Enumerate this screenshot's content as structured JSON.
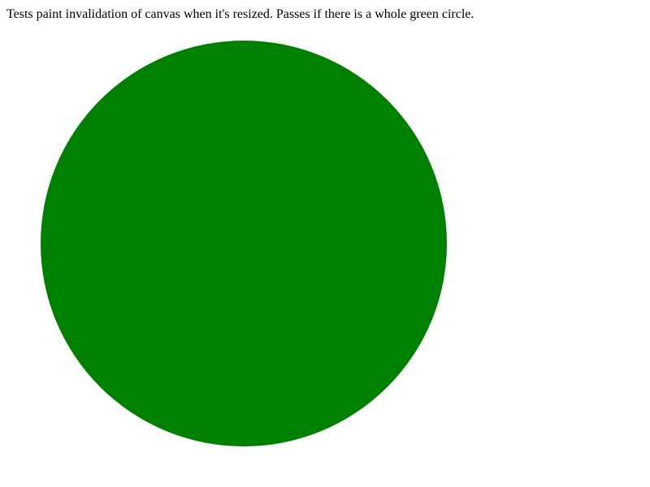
{
  "page": {
    "description": "Tests paint invalidation of canvas when it's resized. Passes if there is a whole green circle."
  },
  "canvas": {
    "shape": "circle",
    "fill_color": "#008000",
    "background_color": "#ffffff"
  }
}
